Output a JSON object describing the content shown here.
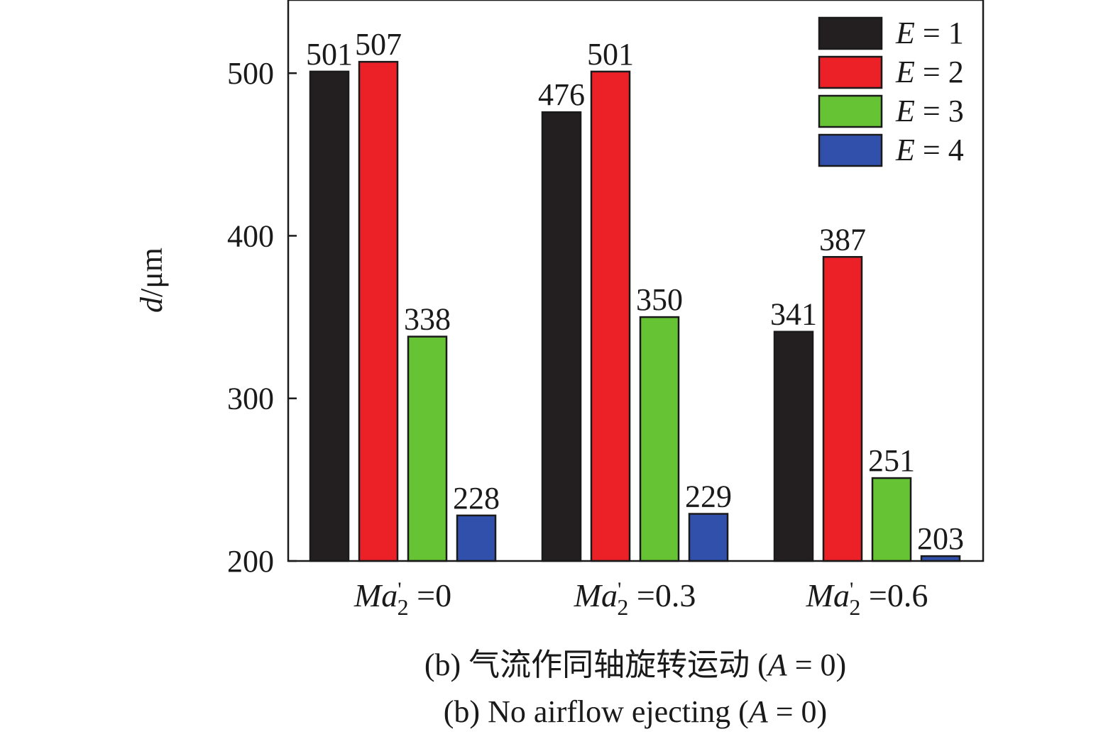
{
  "chart_data": {
    "type": "bar",
    "categories": [
      {
        "var": "Ma",
        "prime": "'",
        "sub": "2",
        "rest": " =0"
      },
      {
        "var": "Ma",
        "prime": "'",
        "sub": "2",
        "rest": " =0.3"
      },
      {
        "var": "Ma",
        "prime": "'",
        "sub": "2",
        "rest": " =0.6"
      }
    ],
    "series": [
      {
        "name": "E = 1",
        "name_var": "E",
        "name_rest": " = 1",
        "color": "#231f20",
        "values": [
          501,
          476,
          341
        ]
      },
      {
        "name": "E = 2",
        "name_var": "E",
        "name_rest": " = 2",
        "color": "#ec2027",
        "values": [
          507,
          501,
          387
        ]
      },
      {
        "name": "E = 3",
        "name_var": "E",
        "name_rest": " = 3",
        "color": "#66c334",
        "values": [
          338,
          350,
          251
        ]
      },
      {
        "name": "E = 4",
        "name_var": "E",
        "name_rest": " = 4",
        "color": "#3050ac",
        "values": [
          228,
          229,
          203
        ]
      }
    ],
    "ylabel": {
      "var": "d",
      "rest": "/μm"
    },
    "ylim": [
      200,
      545
    ],
    "yticks": [
      200,
      300,
      400,
      500
    ],
    "grid": false,
    "legend_position": "top-right"
  },
  "caption": {
    "line1_prefix": "(b) 气流作同轴旋转运动 (",
    "line1_var": "A",
    "line1_suffix": " = 0)",
    "line2_prefix": "(b) No airflow ejecting (",
    "line2_var": "A",
    "line2_suffix": " = 0)"
  }
}
